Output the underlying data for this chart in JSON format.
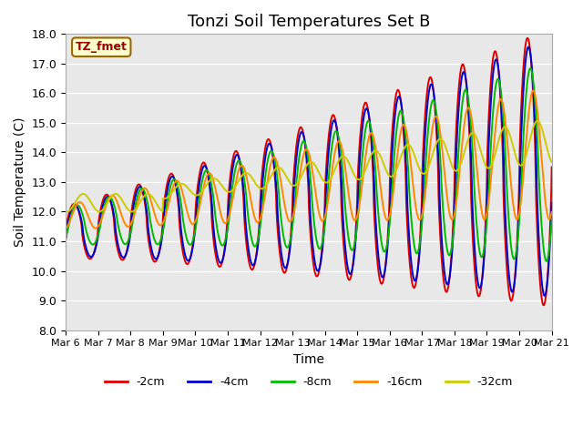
{
  "title": "Tonzi Soil Temperatures Set B",
  "xlabel": "Time",
  "ylabel": "Soil Temperature (C)",
  "ylim": [
    8.0,
    18.0
  ],
  "yticks": [
    8.0,
    9.0,
    10.0,
    11.0,
    12.0,
    13.0,
    14.0,
    15.0,
    16.0,
    17.0,
    18.0
  ],
  "xtick_labels": [
    "Mar 6",
    "Mar 7",
    "Mar 8",
    "Mar 9",
    "Mar 10",
    "Mar 11",
    "Mar 12",
    "Mar 13",
    "Mar 14",
    "Mar 15",
    "Mar 16",
    "Mar 17",
    "Mar 18",
    "Mar 19",
    "Mar 20",
    "Mar 21"
  ],
  "series": {
    "-2cm": {
      "color": "#dd0000",
      "lw": 1.4
    },
    "-4cm": {
      "color": "#0000cc",
      "lw": 1.4
    },
    "-8cm": {
      "color": "#00bb00",
      "lw": 1.4
    },
    "-16cm": {
      "color": "#ff8800",
      "lw": 1.4
    },
    "-32cm": {
      "color": "#cccc00",
      "lw": 1.4
    }
  },
  "legend_label": "TZ_fmet",
  "legend_box_color": "#ffffcc",
  "legend_box_edge": "#996600",
  "bg_color": "#e8e8e8",
  "fig_bg_color": "#ffffff"
}
